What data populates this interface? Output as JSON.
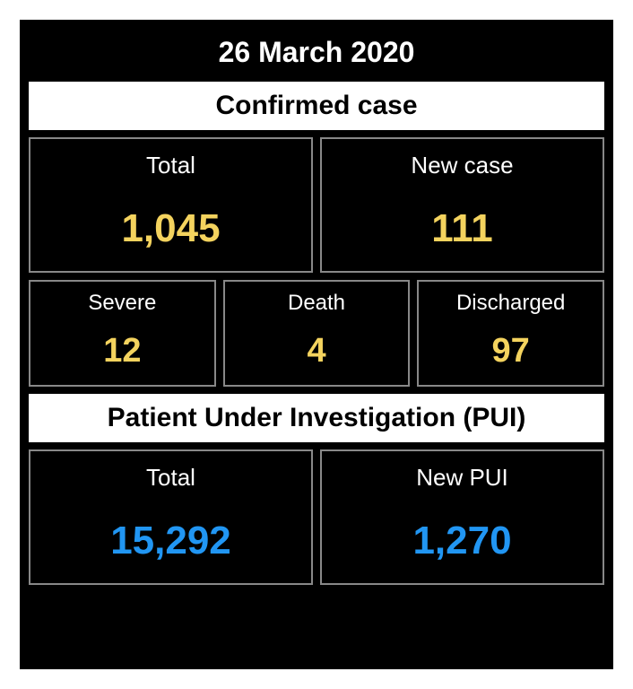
{
  "date": "26 March 2020",
  "sections": {
    "confirmed": {
      "header": "Confirmed case",
      "row1": [
        {
          "label": "Total",
          "value": "1,045"
        },
        {
          "label": "New case",
          "value": "111"
        }
      ],
      "row2": [
        {
          "label": "Severe",
          "value": "12"
        },
        {
          "label": "Death",
          "value": "4"
        },
        {
          "label": "Discharged",
          "value": "97"
        }
      ],
      "value_color": "#f4d35e"
    },
    "pui": {
      "header": "Patient Under Investigation (PUI)",
      "row1": [
        {
          "label": "Total",
          "value": "15,292"
        },
        {
          "label": "New PUI",
          "value": "1,270"
        }
      ],
      "value_color": "#2196f3"
    }
  },
  "colors": {
    "background": "#000000",
    "cell_border": "#888888",
    "text_light": "#ffffff",
    "header_bg": "#ffffff",
    "header_text": "#000000"
  },
  "typography": {
    "date_fontsize": 32,
    "header_fontsize": 30,
    "label_fontsize": 26,
    "value_fontsize": 44,
    "value_small_fontsize": 38
  }
}
